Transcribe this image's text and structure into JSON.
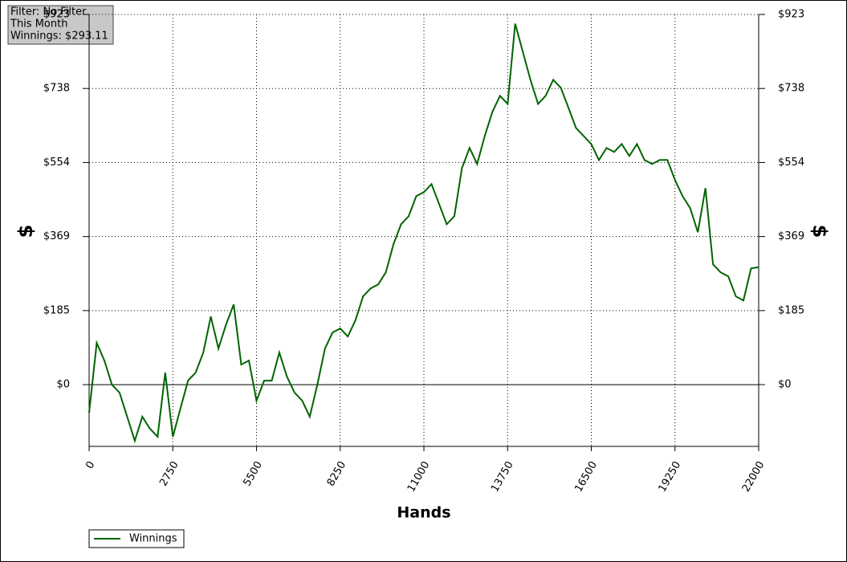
{
  "chart_data": {
    "type": "line",
    "info": [
      "Filter: No Filter",
      "This Month",
      "Winnings: $293.11"
    ],
    "x_label": "Hands",
    "y_label": "$",
    "x": [
      0,
      250,
      500,
      750,
      1000,
      1250,
      1500,
      1750,
      2000,
      2250,
      2500,
      2750,
      3000,
      3250,
      3500,
      3750,
      4000,
      4250,
      4500,
      4750,
      5000,
      5250,
      5500,
      5750,
      6000,
      6250,
      6500,
      6750,
      7000,
      7250,
      7500,
      7750,
      8000,
      8250,
      8500,
      8750,
      9000,
      9250,
      9500,
      9750,
      10000,
      10250,
      10500,
      10750,
      11000,
      11250,
      11500,
      11750,
      12000,
      12250,
      12500,
      12750,
      13000,
      13250,
      13500,
      13750,
      14000,
      14250,
      14500,
      14750,
      15000,
      15250,
      15500,
      15750,
      16000,
      16250,
      16500,
      16750,
      17000,
      17250,
      17500,
      17750,
      18000,
      18250,
      18500,
      18750,
      19000,
      19250,
      19500,
      19750,
      20000,
      20250,
      20500,
      20750,
      21000,
      21250,
      21500,
      21750,
      22000
    ],
    "series": [
      {
        "name": "Winnings",
        "color": "#006400",
        "values": [
          -70,
          104,
          60,
          0,
          -20,
          -80,
          -140,
          -80,
          -110,
          -130,
          30,
          -130,
          -60,
          10,
          30,
          80,
          170,
          90,
          150,
          200,
          50,
          60,
          -40,
          10,
          10,
          80,
          20,
          -20,
          -40,
          -80,
          0,
          90,
          130,
          140,
          120,
          160,
          220,
          240,
          250,
          280,
          350,
          400,
          420,
          470,
          480,
          500,
          450,
          400,
          420,
          540,
          590,
          550,
          620,
          680,
          720,
          700,
          900,
          830,
          760,
          700,
          720,
          760,
          740,
          690,
          640,
          620,
          600,
          560,
          590,
          580,
          600,
          570,
          600,
          560,
          550,
          560,
          560,
          510,
          470,
          440,
          380,
          490,
          300,
          280,
          270,
          220,
          210,
          290,
          293.11
        ]
      }
    ],
    "xlim": [
      0,
      22000
    ],
    "xticks": [
      0,
      2750,
      5500,
      8250,
      11000,
      13750,
      16500,
      19250,
      22000
    ],
    "ylim": [
      -154,
      923
    ],
    "yticks": [
      {
        "value": 0,
        "label": "$0"
      },
      {
        "value": 184.6,
        "label": "$185"
      },
      {
        "value": 369.2,
        "label": "$369"
      },
      {
        "value": 553.8,
        "label": "$554"
      },
      {
        "value": 738.4,
        "label": "$738"
      },
      {
        "value": 923,
        "label": "$923"
      }
    ],
    "grid": true,
    "legend": "bottom-left"
  }
}
